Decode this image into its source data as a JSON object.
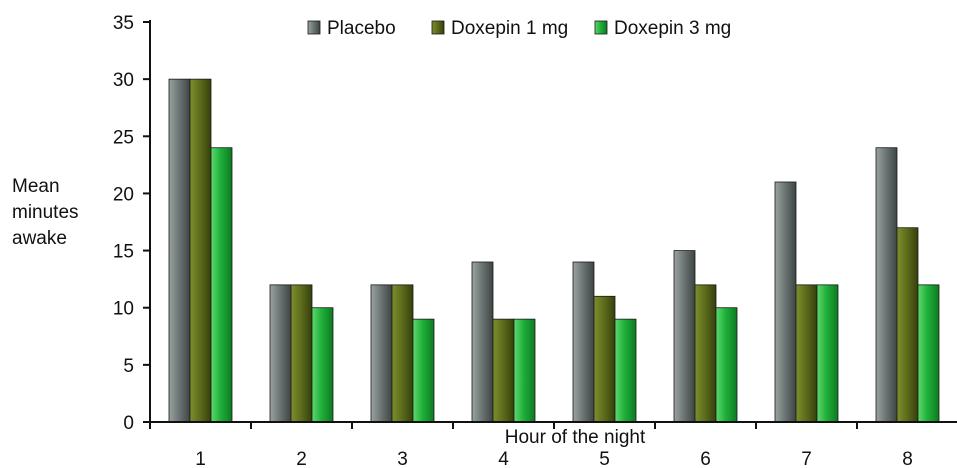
{
  "chart_data": {
    "type": "bar",
    "title": "",
    "xlabel": "Hour of the night",
    "ylabel": [
      "Mean",
      "minutes",
      "awake"
    ],
    "categories": [
      "1",
      "2",
      "3",
      "4",
      "5",
      "6",
      "7",
      "8"
    ],
    "ylim": [
      0,
      35
    ],
    "yticks": [
      "0",
      "5",
      "10",
      "15",
      "20",
      "25",
      "30",
      "35"
    ],
    "grid": false,
    "legend_position": "top",
    "series": [
      {
        "name": "Placebo",
        "color": "#6e7776",
        "values": [
          30,
          12,
          12,
          14,
          14,
          15,
          21,
          24
        ]
      },
      {
        "name": "Doxepin 1 mg",
        "color": "#5e6e1c",
        "values": [
          30,
          12,
          12,
          9,
          11,
          12,
          12,
          17
        ]
      },
      {
        "name": "Doxepin 3 mg",
        "color": "#1fb03a",
        "values": [
          24,
          10,
          9,
          9,
          9,
          10,
          12,
          12
        ]
      }
    ]
  }
}
